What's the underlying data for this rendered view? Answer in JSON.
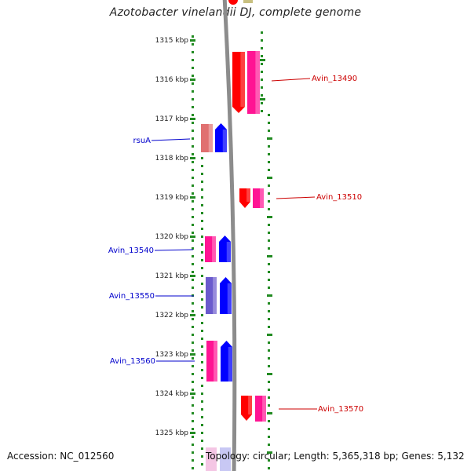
{
  "header": {
    "title": "Azotobacter vinelandii DJ, complete genome"
  },
  "footer": {
    "accession": "Accession: NC_012560",
    "summary": "Topology: circular; Length: 5,365,318 bp; Genes: 5,132"
  },
  "scale": {
    "ticks": [
      {
        "label": "1315 kbp"
      },
      {
        "label": "1316 kbp"
      },
      {
        "label": "1317 kbp"
      },
      {
        "label": "1318 kbp"
      },
      {
        "label": "1319 kbp"
      },
      {
        "label": "1320 kbp"
      },
      {
        "label": "1321 kbp"
      },
      {
        "label": "1322 kbp"
      },
      {
        "label": "1323 kbp"
      },
      {
        "label": "1324 kbp"
      },
      {
        "label": "1325 kbp"
      }
    ]
  },
  "colors": {
    "backbone": "#8c8c8c",
    "ruler": "#228b22",
    "forward_label": "#cc0000",
    "reverse_label": "#0000cc",
    "gene_red": "#ff0000",
    "gene_blue": "#0000ff",
    "gene_pink": "#ff1493",
    "gene_purple": "#6a5acd",
    "gene_salmon": "#e07070"
  },
  "genes": [
    {
      "label": "Avin_13490",
      "strand": "forward"
    },
    {
      "label": "rsuA",
      "strand": "reverse"
    },
    {
      "label": "Avin_13510",
      "strand": "forward"
    },
    {
      "label": "Avin_13540",
      "strand": "reverse"
    },
    {
      "label": "Avin_13550",
      "strand": "reverse"
    },
    {
      "label": "Avin_13560",
      "strand": "reverse"
    },
    {
      "label": "Avin_13570",
      "strand": "forward"
    }
  ]
}
